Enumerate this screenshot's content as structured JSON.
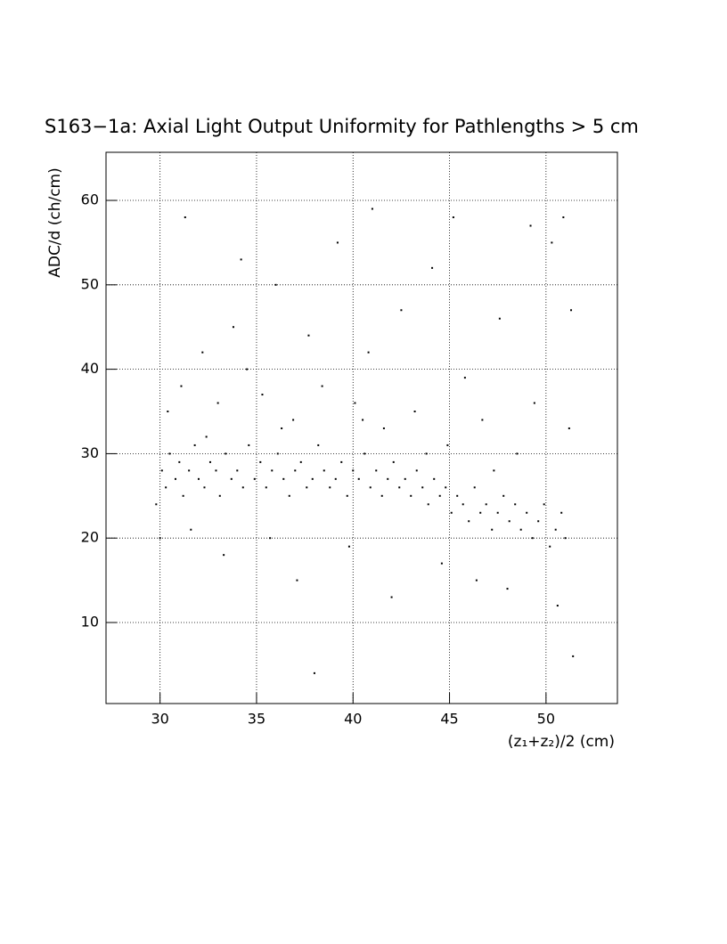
{
  "chart_data": {
    "type": "scatter",
    "title": "S163−1a: Axial Light Output Uniformity for Pathlengths > 5 cm",
    "x_label": "(z₁+z₂)/2 (cm)",
    "y_label": "ADC/d (ch/cm)",
    "xlim": [
      27.2,
      53.7
    ],
    "ylim": [
      0.4,
      65.7
    ],
    "xticks": [
      30,
      35,
      40,
      45,
      50
    ],
    "yticks": [
      10,
      20,
      30,
      40,
      50,
      60
    ],
    "grid": true,
    "color": "#000000",
    "x": [
      30.1,
      30.3,
      30.5,
      30.8,
      31.0,
      31.2,
      31.5,
      31.8,
      32.0,
      32.3,
      32.6,
      32.9,
      33.1,
      33.4,
      33.7,
      34.0,
      34.3,
      34.6,
      34.9,
      35.2,
      35.5,
      35.8,
      36.1,
      36.4,
      36.7,
      37.0,
      37.3,
      37.6,
      37.9,
      38.2,
      38.5,
      38.8,
      39.1,
      39.4,
      39.7,
      40.0,
      40.3,
      40.6,
      40.9,
      41.2,
      41.5,
      41.8,
      42.1,
      42.4,
      42.7,
      43.0,
      43.3,
      43.6,
      43.9,
      44.2,
      44.5,
      44.8,
      45.1,
      45.4,
      45.7,
      46.0,
      46.3,
      46.6,
      46.9,
      47.2,
      47.5,
      47.8,
      48.1,
      48.4,
      48.7,
      49.0,
      49.3,
      49.6,
      49.9,
      50.2,
      50.5,
      50.8,
      51.0,
      30.4,
      31.1,
      32.2,
      33.0,
      33.8,
      34.5,
      35.3,
      36.0,
      36.9,
      37.7,
      38.4,
      39.2,
      40.1,
      40.8,
      41.6,
      42.5,
      43.2,
      44.1,
      44.9,
      45.8,
      46.7,
      47.6,
      48.5,
      49.4,
      50.3,
      51.2,
      31.6,
      33.3,
      35.7,
      37.1,
      39.8,
      42.0,
      44.6,
      46.4,
      48.0,
      50.6,
      51.4,
      38.0,
      31.3,
      34.2,
      41.0,
      45.2,
      49.2,
      50.9,
      32.4,
      36.3,
      40.5,
      43.8,
      47.3,
      29.8,
      51.3,
      30.0
    ],
    "values": [
      28,
      26,
      30,
      27,
      29,
      25,
      28,
      31,
      27,
      26,
      29,
      28,
      25,
      30,
      27,
      28,
      26,
      31,
      27,
      29,
      26,
      28,
      30,
      27,
      25,
      28,
      29,
      26,
      27,
      31,
      28,
      26,
      27,
      29,
      25,
      28,
      27,
      30,
      26,
      28,
      25,
      27,
      29,
      26,
      27,
      25,
      28,
      26,
      24,
      27,
      25,
      26,
      23,
      25,
      24,
      22,
      26,
      23,
      24,
      21,
      23,
      25,
      22,
      24,
      21,
      23,
      20,
      22,
      24,
      19,
      21,
      23,
      20,
      35,
      38,
      42,
      36,
      45,
      40,
      37,
      50,
      34,
      44,
      38,
      55,
      36,
      42,
      33,
      47,
      35,
      52,
      31,
      39,
      34,
      46,
      30,
      36,
      55,
      33,
      21,
      18,
      20,
      15,
      19,
      13,
      17,
      15,
      14,
      12,
      6,
      4,
      58,
      53,
      59,
      58,
      57,
      58,
      32,
      33,
      34,
      30,
      28,
      24,
      47,
      20
    ]
  }
}
